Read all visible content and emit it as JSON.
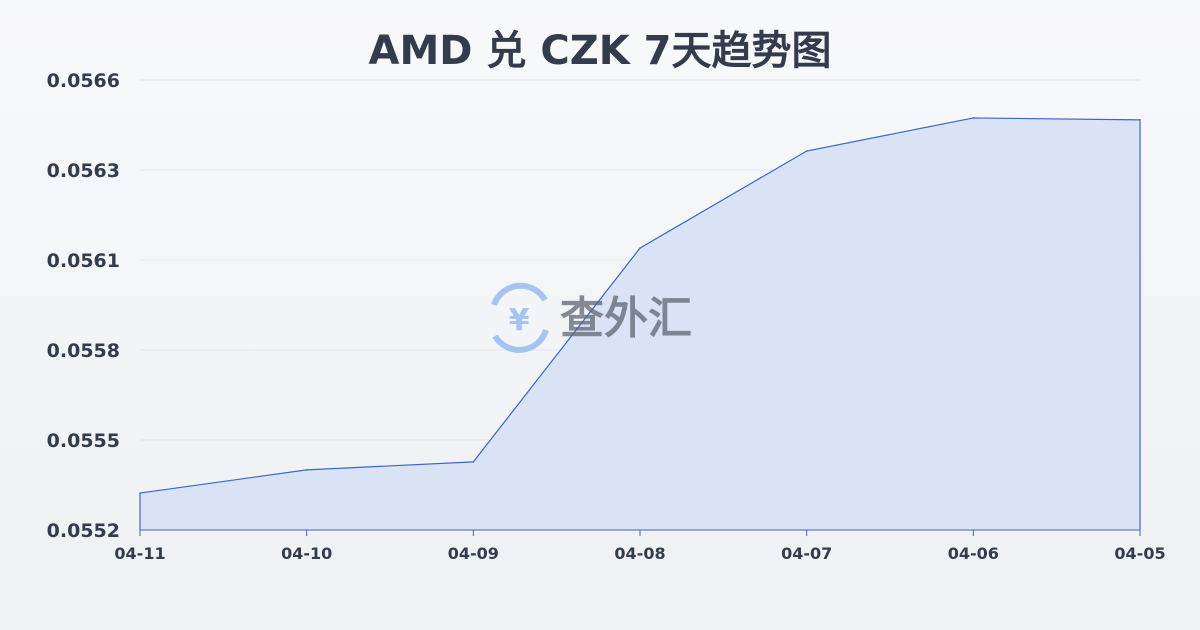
{
  "chart_data": {
    "type": "area",
    "title": "AMD 兑 CZK 7天趋势图",
    "xlabel": "",
    "ylabel": "",
    "categories": [
      "04-11",
      "04-10",
      "04-09",
      "04-08",
      "04-07",
      "04-06",
      "04-05"
    ],
    "values": [
      0.055315,
      0.055387,
      0.055412,
      0.056077,
      0.056379,
      0.056482,
      0.056476
    ],
    "ylim": [
      0.0552,
      0.0566
    ],
    "yticks": [
      "0.0552",
      "0.0555",
      "0.0558",
      "0.0561",
      "0.0563",
      "0.0566"
    ],
    "grid": true,
    "line_color": "#3a66c8",
    "fill_color": "#d8e2f5"
  },
  "watermark": {
    "text": "查外汇",
    "icon": "yen-exchange-icon",
    "color": "#5b8fe0"
  }
}
